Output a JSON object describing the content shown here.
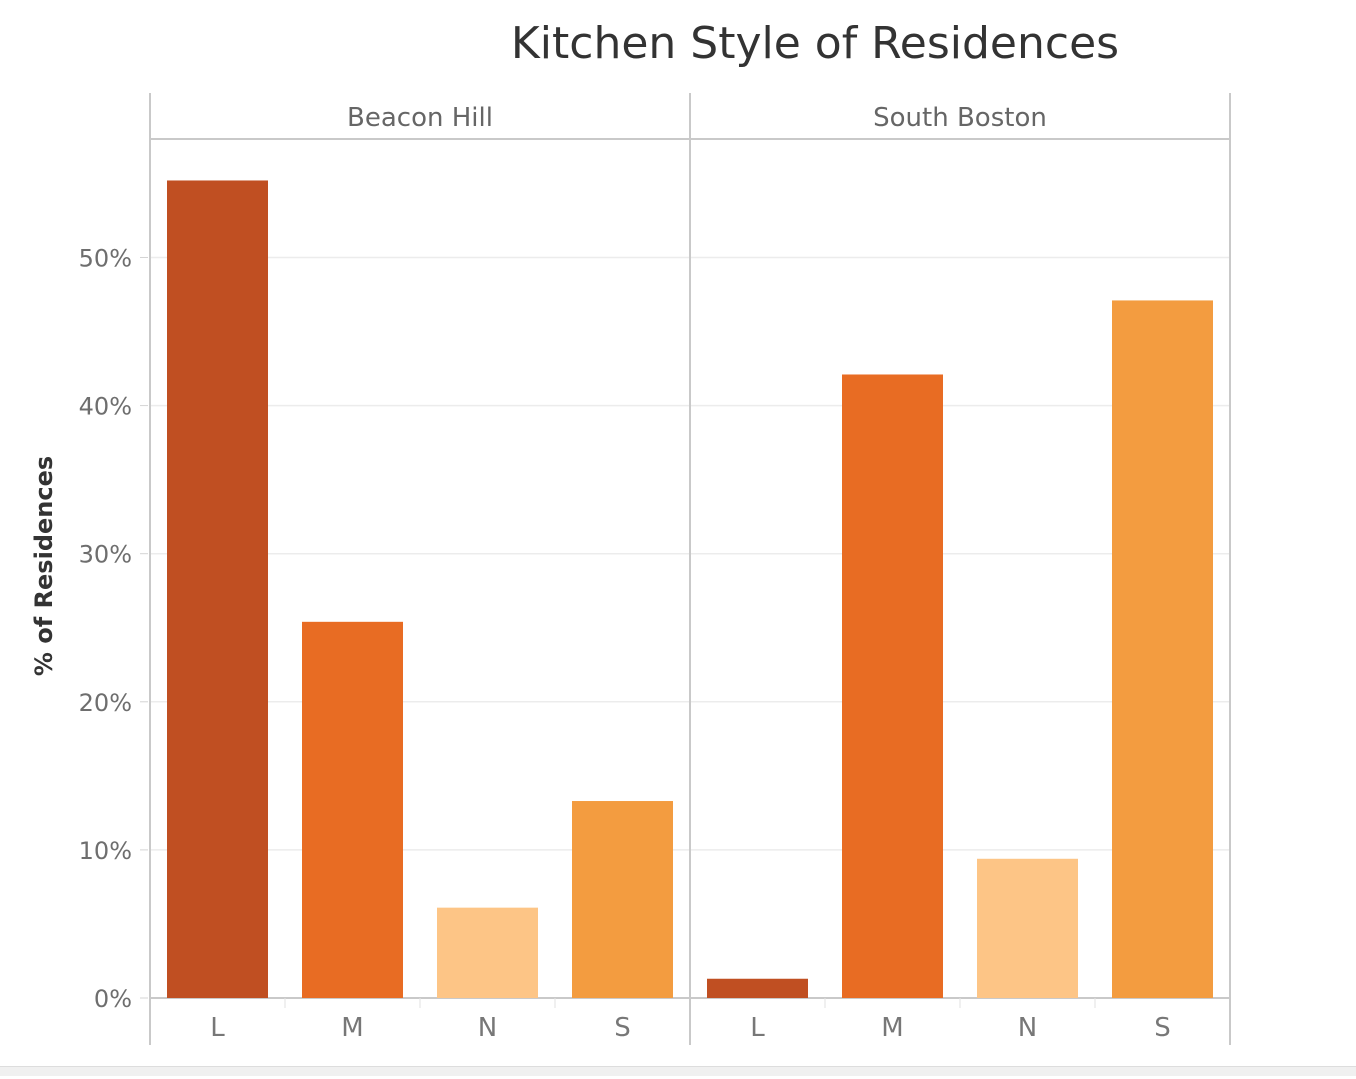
{
  "chart_data": {
    "type": "bar",
    "title": "Kitchen Style of Residences",
    "ylabel": "% of Residences",
    "xlabel": "",
    "ylim": [
      0,
      0.58
    ],
    "yticks": [
      0,
      0.1,
      0.2,
      0.3,
      0.4,
      0.5
    ],
    "ytick_labels": [
      "0%",
      "10%",
      "20%",
      "30%",
      "40%",
      "50%"
    ],
    "grid": true,
    "categories": [
      "L",
      "M",
      "N",
      "S"
    ],
    "category_colors": {
      "L": "#c04f22",
      "M": "#e86c23",
      "N": "#fdc586",
      "S": "#f39c40"
    },
    "panels": [
      {
        "name": "Beacon Hill",
        "values": [
          0.552,
          0.254,
          0.061,
          0.133
        ]
      },
      {
        "name": "South Boston",
        "values": [
          0.013,
          0.421,
          0.094,
          0.471
        ]
      }
    ]
  }
}
